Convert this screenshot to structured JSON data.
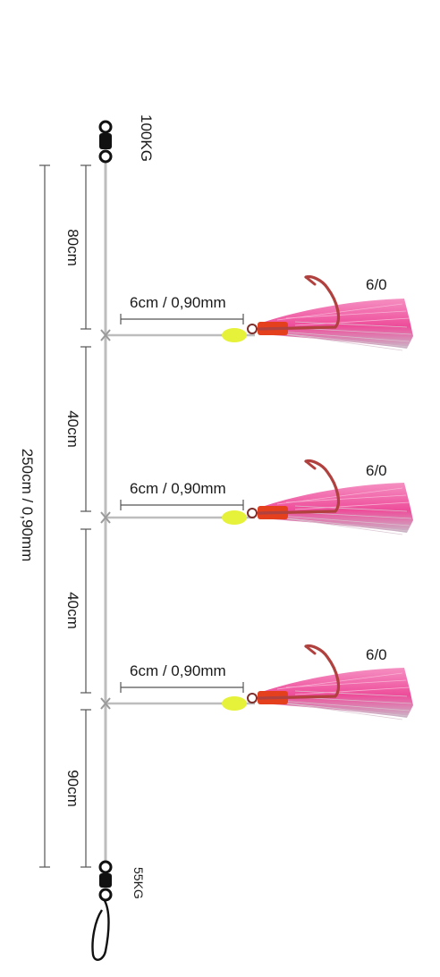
{
  "rig": {
    "top_swivel_rating": "100KG",
    "bottom_swivel_rating": "55KG",
    "total_length": "250cm / 0,90mm",
    "segments": [
      "80cm",
      "40cm",
      "40cm",
      "90cm"
    ],
    "branches": [
      {
        "snood": "6cm / 0,90mm",
        "hook_size": "6/0"
      },
      {
        "snood": "6cm / 0,90mm",
        "hook_size": "6/0"
      },
      {
        "snood": "6cm / 0,90mm",
        "hook_size": "6/0"
      }
    ]
  },
  "colors": {
    "line": "#bdbdbd",
    "dimension": "#555555",
    "bead": "#e6f23a",
    "sleeve": "#e4401e",
    "hook": "#b0413e",
    "skirt": "#f26aa8",
    "hardware": "#111111"
  }
}
